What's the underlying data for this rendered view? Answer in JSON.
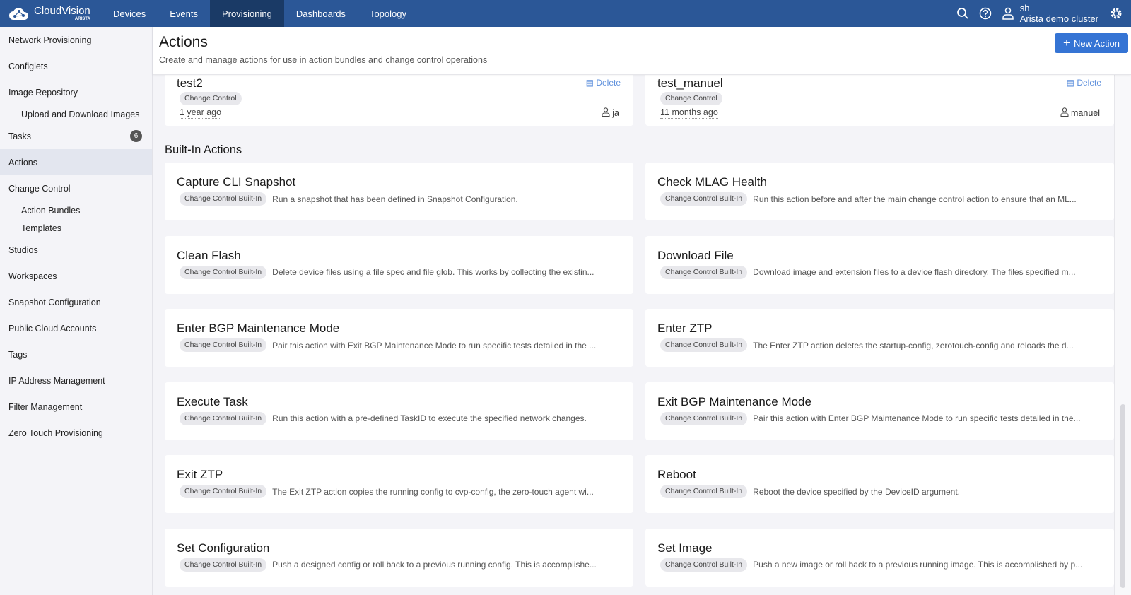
{
  "app": {
    "name": "CloudVision",
    "brand": "ARISTA"
  },
  "nav": {
    "tabs": [
      {
        "label": "Devices"
      },
      {
        "label": "Events"
      },
      {
        "label": "Provisioning",
        "active": true
      },
      {
        "label": "Dashboards"
      },
      {
        "label": "Topology"
      }
    ],
    "user": {
      "name": "sh",
      "cluster": "Arista demo cluster"
    }
  },
  "sidebar": {
    "items": [
      {
        "label": "Network Provisioning"
      },
      {
        "label": "Configlets"
      },
      {
        "label": "Image Repository"
      },
      {
        "label": "Upload and Download Images",
        "sub": true
      },
      {
        "label": "Tasks",
        "badge": "6"
      },
      {
        "label": "Actions",
        "active": true
      },
      {
        "label": "Change Control"
      },
      {
        "label": "Action Bundles",
        "sub": true
      },
      {
        "label": "Templates",
        "sub": true
      },
      {
        "label": "Studios"
      },
      {
        "label": "Workspaces"
      },
      {
        "label": "Snapshot Configuration"
      },
      {
        "label": "Public Cloud Accounts"
      },
      {
        "label": "Tags"
      },
      {
        "label": "IP Address Management"
      },
      {
        "label": "Filter Management"
      },
      {
        "label": "Zero Touch Provisioning"
      }
    ]
  },
  "header": {
    "title": "Actions",
    "subtitle": "Create and manage actions for use in action bundles and change control operations",
    "new_button": "New Action"
  },
  "custom": [
    {
      "title": "test2",
      "tag": "Change Control",
      "delete": "Delete",
      "age": "1 year ago",
      "owner": "ja"
    },
    {
      "title": "test_manuel",
      "tag": "Change Control",
      "delete": "Delete",
      "age": "11 months ago",
      "owner": "manuel"
    }
  ],
  "builtin_title": "Built-In Actions",
  "builtin": [
    {
      "title": "Capture CLI Snapshot",
      "tag": "Change Control Built-In",
      "desc": "Run a snapshot that has been defined in Snapshot Configuration."
    },
    {
      "title": "Check MLAG Health",
      "tag": "Change Control Built-In",
      "desc": "Run this action before and after the main change control action to ensure that an ML..."
    },
    {
      "title": "Clean Flash",
      "tag": "Change Control Built-In",
      "desc": "Delete device files using a file spec and file glob. This works by collecting the existin..."
    },
    {
      "title": "Download File",
      "tag": "Change Control Built-In",
      "desc": "Download image and extension files to a device flash directory. The files specified m..."
    },
    {
      "title": "Enter BGP Maintenance Mode",
      "tag": "Change Control Built-In",
      "desc": "Pair this action with Exit BGP Maintenance Mode to run specific tests detailed in the ..."
    },
    {
      "title": "Enter ZTP",
      "tag": "Change Control Built-In",
      "desc": "The Enter ZTP action deletes the startup-config, zerotouch-config and reloads the d..."
    },
    {
      "title": "Execute Task",
      "tag": "Change Control Built-In",
      "desc": "Run this action with a pre-defined TaskID to execute the specified network changes."
    },
    {
      "title": "Exit BGP Maintenance Mode",
      "tag": "Change Control Built-In",
      "desc": "Pair this action with Enter BGP Maintenance Mode to run specific tests detailed in the..."
    },
    {
      "title": "Exit ZTP",
      "tag": "Change Control Built-In",
      "desc": "The Exit ZTP action copies the running config to cvp-config, the zero-touch agent wi..."
    },
    {
      "title": "Reboot",
      "tag": "Change Control Built-In",
      "desc": "Reboot the device specified by the DeviceID argument."
    },
    {
      "title": "Set Configuration",
      "tag": "Change Control Built-In",
      "desc": "Push a designed config or roll back to a previous running config. This is accomplishe..."
    },
    {
      "title": "Set Image",
      "tag": "Change Control Built-In",
      "desc": "Push a new image or roll back to a previous running image. This is accomplished by p..."
    }
  ],
  "colors": {
    "nav": "#2b5797",
    "nav_active": "#1a3a66",
    "accent": "#3574d4"
  }
}
